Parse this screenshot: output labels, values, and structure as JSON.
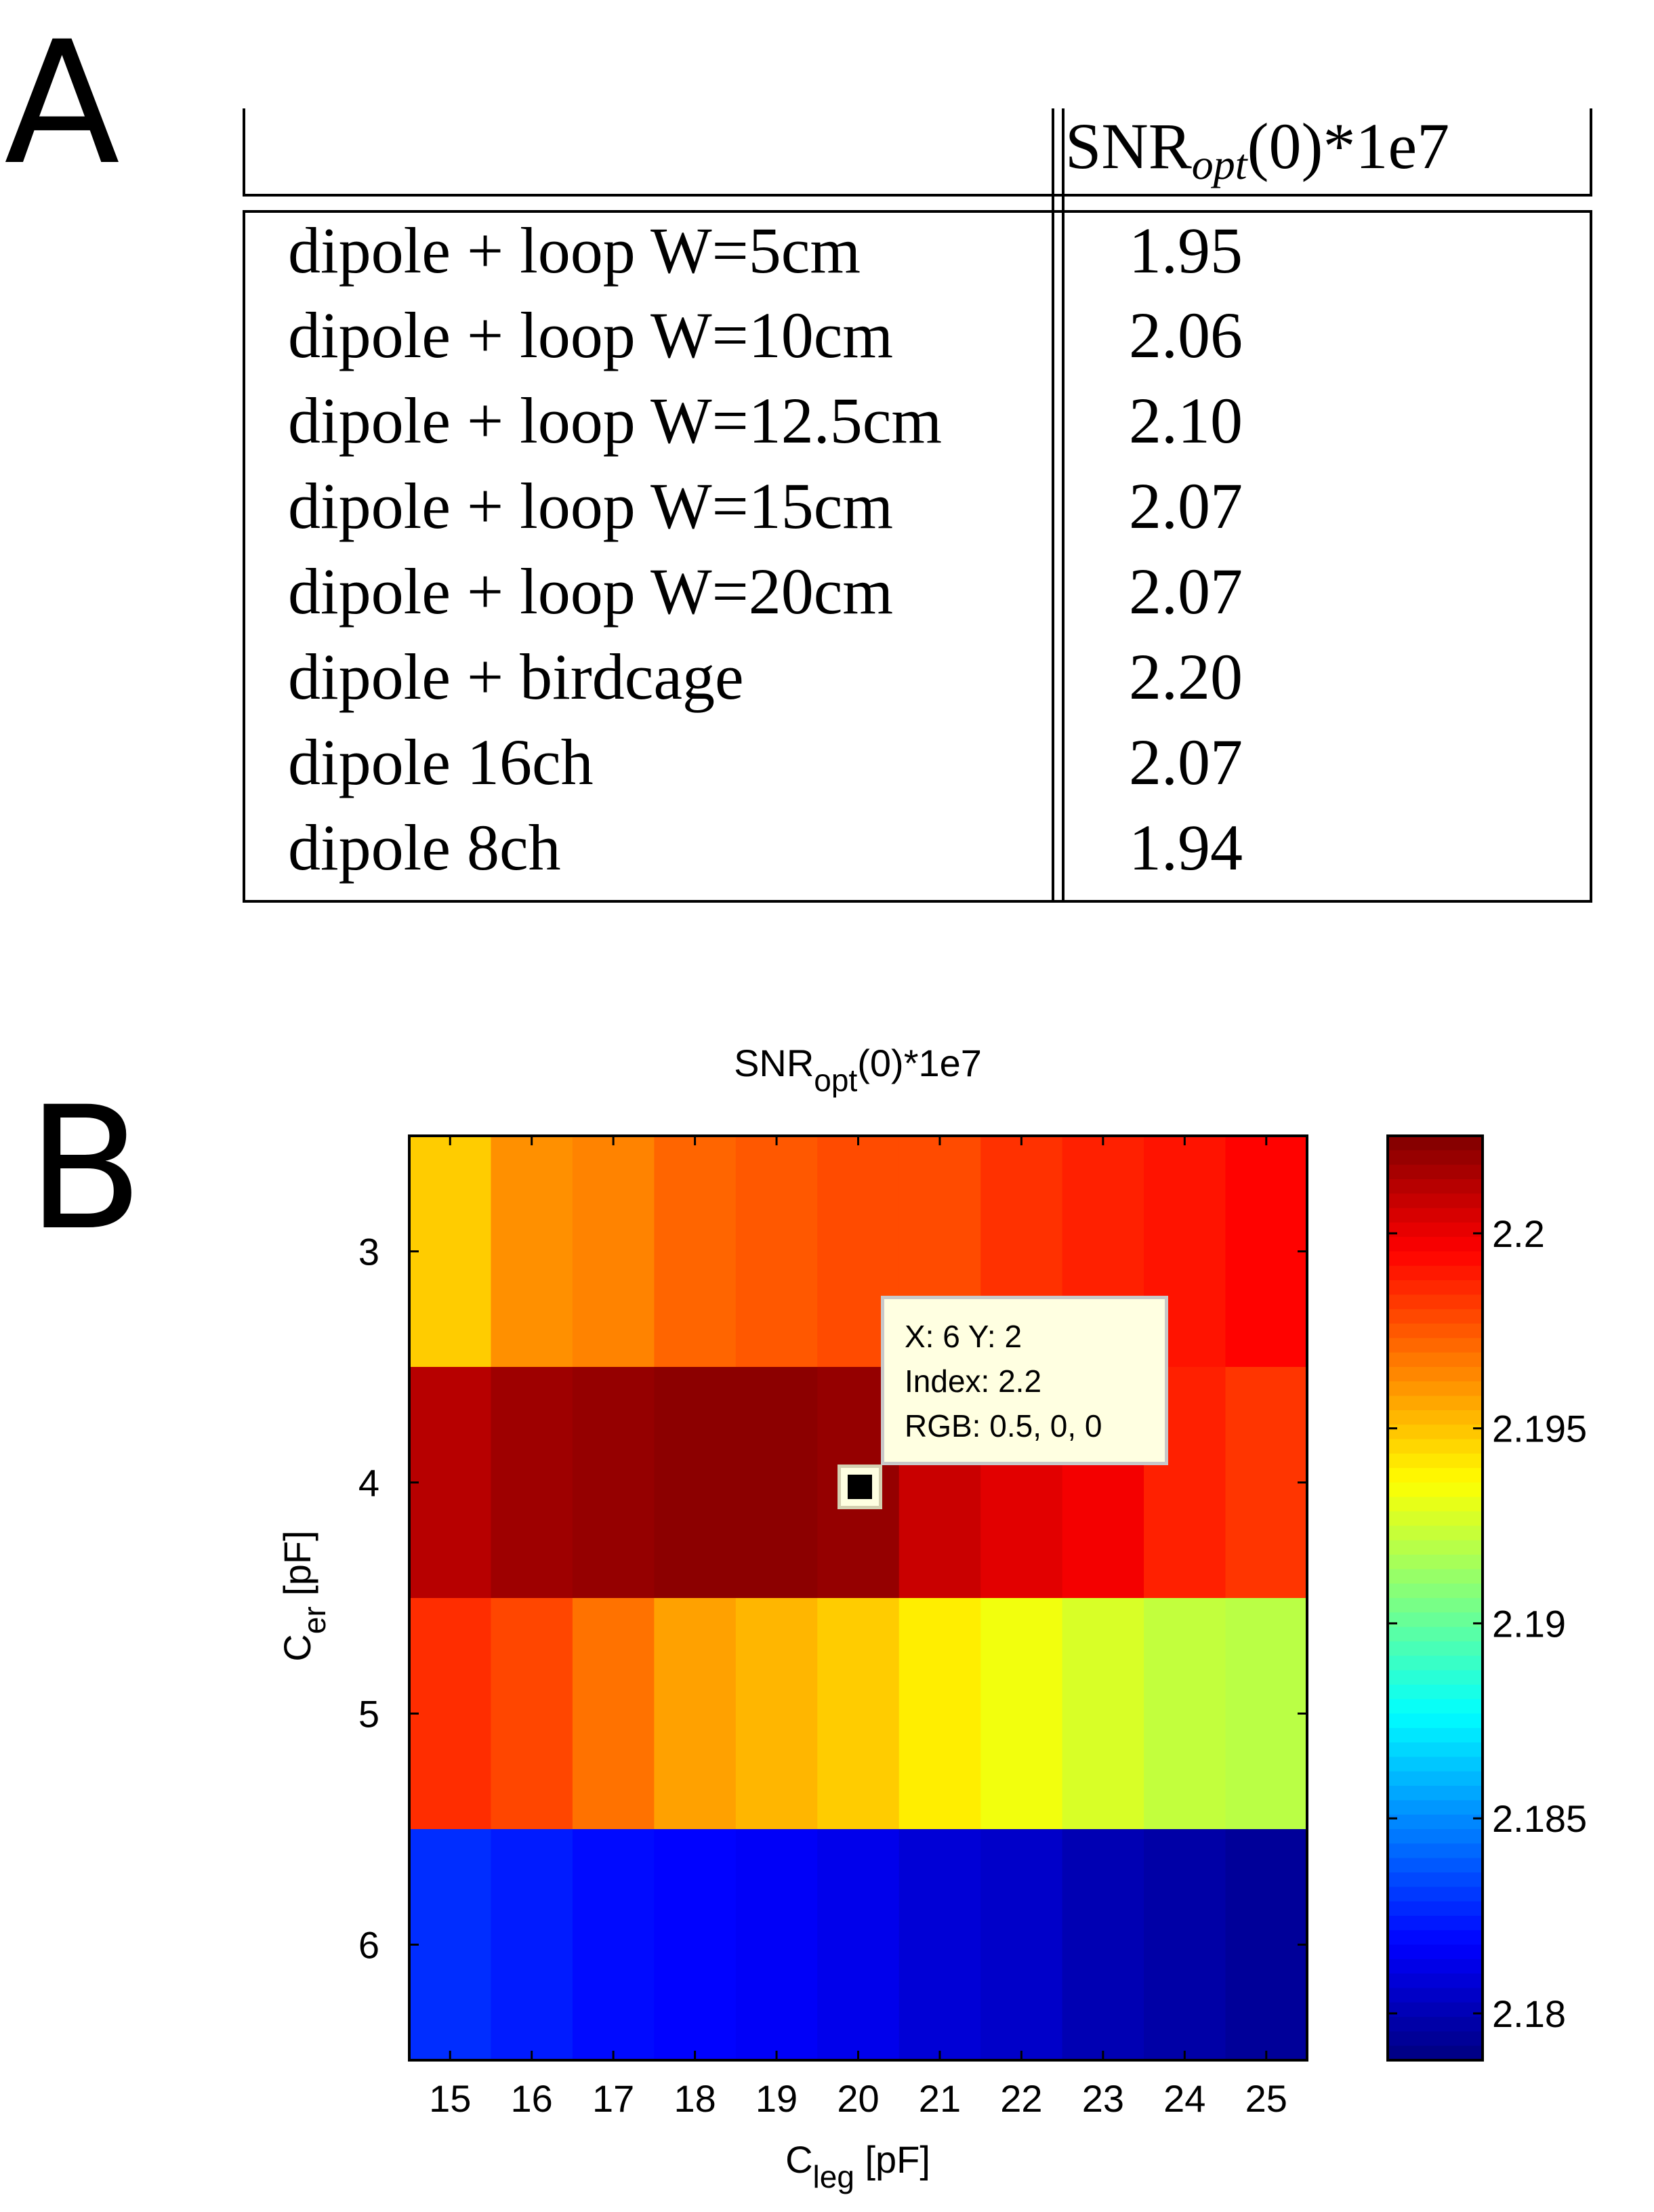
{
  "panel_a": {
    "letter": "A",
    "table": {
      "header_main": "SNR",
      "header_sub": "opt",
      "header_tail": "(0)*1e7",
      "rows": [
        {
          "label": "dipole + loop W=5cm",
          "value": "1.95"
        },
        {
          "label": "dipole + loop W=10cm",
          "value": "2.06"
        },
        {
          "label": "dipole + loop W=12.5cm",
          "value": "2.10"
        },
        {
          "label": "dipole + loop W=15cm",
          "value": "2.07"
        },
        {
          "label": "dipole + loop W=20cm",
          "value": "2.07"
        },
        {
          "label": "dipole + birdcage",
          "value": "2.20"
        },
        {
          "label": "dipole 16ch",
          "value": "2.07"
        },
        {
          "label": "dipole 8ch",
          "value": "1.94"
        }
      ]
    }
  },
  "panel_b": {
    "letter": "B",
    "tooltip": {
      "line1": "X: 6 Y: 2",
      "line2": "Index: 2.2",
      "line3": "RGB: 0.5, 0, 0"
    }
  },
  "chart_data": {
    "type": "heatmap",
    "title": "SNRopt(0)*1e7",
    "title_main": "SNR",
    "title_sub": "opt",
    "title_tail": "(0)*1e7",
    "xlabel": "Cleg [pF]",
    "xlabel_main": "C",
    "xlabel_sub": "leg",
    "xlabel_tail": " [pF]",
    "ylabel": "Cer [pF]",
    "ylabel_main": "C",
    "ylabel_sub": "er",
    "ylabel_tail": " [pF]",
    "x": [
      15,
      16,
      17,
      18,
      19,
      20,
      21,
      22,
      23,
      24,
      25
    ],
    "y": [
      3,
      4,
      5,
      6
    ],
    "z": [
      [
        2.1948,
        2.1962,
        2.1965,
        2.1972,
        2.1975,
        2.1978,
        2.1978,
        2.1984,
        2.1988,
        2.1991,
        2.1995
      ],
      [
        2.2012,
        2.2018,
        2.202,
        2.2022,
        2.2022,
        2.202,
        2.2008,
        2.2002,
        2.1998,
        2.1988,
        2.1983
      ],
      [
        2.1985,
        2.1979,
        2.1969,
        2.1958,
        2.1953,
        2.1948,
        2.194,
        2.1933,
        2.1927,
        2.1922,
        2.192
      ],
      [
        2.1828,
        2.1824,
        2.182,
        2.1818,
        2.1816,
        2.1813,
        2.1808,
        2.1805,
        2.18,
        2.1797,
        2.1794
      ]
    ],
    "clim": [
      2.1788,
      2.2025
    ],
    "colormap": "jet",
    "colorbar_ticks": [
      2.2,
      2.195,
      2.19,
      2.185,
      2.18
    ],
    "colorbar_tick_labels": [
      "2.2",
      "2.195",
      "2.19",
      "2.185",
      "2.18"
    ],
    "highlight": {
      "x": 20,
      "y": 4,
      "value": 2.2
    }
  }
}
